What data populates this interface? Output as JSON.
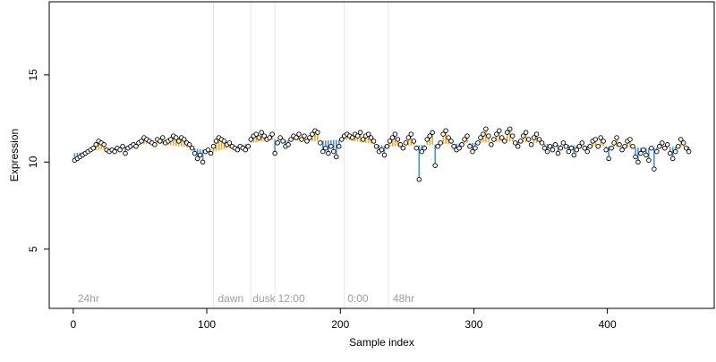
{
  "chart_data": {
    "type": "scatter",
    "xlabel": "Sample index",
    "ylabel": "Expression",
    "xlim": [
      -18,
      480
    ],
    "ylim": [
      1.6,
      19.2
    ],
    "x_ticks": [
      0,
      100,
      200,
      300,
      400
    ],
    "y_ticks": [
      5,
      10,
      15
    ],
    "grid": false,
    "legend": "none",
    "colors": {
      "points_stroke": "#000000",
      "points_fill": "#ffffff",
      "stem_above": "#f5a623",
      "stem_below": "#4a90e2",
      "vline": "#e6e6e6",
      "annotation_text": "#9e9e9e"
    },
    "vlines": [
      105,
      133,
      151,
      203,
      236
    ],
    "annotations": [
      {
        "label": "24hr",
        "x": 2
      },
      {
        "label": "dawn",
        "x": 107
      },
      {
        "label": "dusk",
        "x": 133
      },
      {
        "label": "12:00",
        "x": 152
      },
      {
        "label": "0:00",
        "x": 204
      },
      {
        "label": "48hr",
        "x": 238
      }
    ],
    "series": [
      {
        "baseline": [
          {
            "x": 0,
            "y": 10.5
          },
          {
            "x": 30,
            "y": 10.8
          },
          {
            "x": 60,
            "y": 11.1
          },
          {
            "x": 90,
            "y": 10.8
          },
          {
            "x": 105,
            "y": 10.6
          },
          {
            "x": 133,
            "y": 11.1
          },
          {
            "x": 151,
            "y": 11.3
          },
          {
            "x": 180,
            "y": 11.2
          },
          {
            "x": 203,
            "y": 11.3
          },
          {
            "x": 236,
            "y": 10.9
          },
          {
            "x": 270,
            "y": 11.0
          },
          {
            "x": 300,
            "y": 11.1
          },
          {
            "x": 330,
            "y": 11.2
          },
          {
            "x": 360,
            "y": 11.0
          },
          {
            "x": 400,
            "y": 10.9
          },
          {
            "x": 430,
            "y": 10.8
          },
          {
            "x": 460,
            "y": 10.9
          }
        ],
        "points": [
          [
            1,
            10.1
          ],
          [
            3,
            10.2
          ],
          [
            5,
            10.3
          ],
          [
            7,
            10.4
          ],
          [
            9,
            10.5
          ],
          [
            11,
            10.6
          ],
          [
            13,
            10.7
          ],
          [
            15,
            10.8
          ],
          [
            17,
            11.0
          ],
          [
            19,
            11.2
          ],
          [
            21,
            11.1
          ],
          [
            23,
            11.0
          ],
          [
            25,
            10.7
          ],
          [
            27,
            10.6
          ],
          [
            29,
            10.7
          ],
          [
            31,
            10.6
          ],
          [
            33,
            10.8
          ],
          [
            35,
            10.7
          ],
          [
            37,
            10.9
          ],
          [
            39,
            10.5
          ],
          [
            41,
            10.8
          ],
          [
            43,
            10.9
          ],
          [
            45,
            11.0
          ],
          [
            47,
            10.9
          ],
          [
            49,
            11.1
          ],
          [
            51,
            11.2
          ],
          [
            53,
            11.4
          ],
          [
            55,
            11.3
          ],
          [
            57,
            11.2
          ],
          [
            59,
            11.1
          ],
          [
            61,
            11.0
          ],
          [
            63,
            11.3
          ],
          [
            65,
            11.2
          ],
          [
            67,
            11.4
          ],
          [
            69,
            11.1
          ],
          [
            71,
            11.2
          ],
          [
            73,
            11.3
          ],
          [
            75,
            11.5
          ],
          [
            77,
            11.4
          ],
          [
            79,
            11.2
          ],
          [
            81,
            11.4
          ],
          [
            83,
            11.3
          ],
          [
            85,
            11.1
          ],
          [
            87,
            11.0
          ],
          [
            89,
            10.8
          ],
          [
            91,
            10.5
          ],
          [
            93,
            10.2
          ],
          [
            95,
            10.4
          ],
          [
            97,
            10.0
          ],
          [
            99,
            10.6
          ],
          [
            101,
            10.7
          ],
          [
            103,
            10.5
          ],
          [
            105,
            10.9
          ],
          [
            107,
            11.2
          ],
          [
            109,
            11.4
          ],
          [
            111,
            11.3
          ],
          [
            113,
            11.2
          ],
          [
            115,
            11.0
          ],
          [
            117,
            11.1
          ],
          [
            119,
            10.9
          ],
          [
            121,
            10.8
          ],
          [
            123,
            10.7
          ],
          [
            125,
            10.9
          ],
          [
            127,
            10.8
          ],
          [
            129,
            10.7
          ],
          [
            131,
            10.9
          ],
          [
            133,
            11.3
          ],
          [
            135,
            11.5
          ],
          [
            137,
            11.6
          ],
          [
            139,
            11.4
          ],
          [
            141,
            11.7
          ],
          [
            143,
            11.5
          ],
          [
            145,
            11.3
          ],
          [
            147,
            11.4
          ],
          [
            149,
            11.6
          ],
          [
            151,
            10.5
          ],
          [
            153,
            11.1
          ],
          [
            155,
            11.4
          ],
          [
            157,
            11.2
          ],
          [
            159,
            10.9
          ],
          [
            161,
            11.0
          ],
          [
            163,
            11.3
          ],
          [
            165,
            11.5
          ],
          [
            167,
            11.4
          ],
          [
            169,
            11.6
          ],
          [
            171,
            11.3
          ],
          [
            173,
            11.5
          ],
          [
            175,
            11.2
          ],
          [
            177,
            11.4
          ],
          [
            179,
            11.6
          ],
          [
            181,
            11.8
          ],
          [
            183,
            11.7
          ],
          [
            185,
            11.1
          ],
          [
            187,
            10.6
          ],
          [
            189,
            10.8
          ],
          [
            191,
            10.5
          ],
          [
            193,
            10.9
          ],
          [
            195,
            10.6
          ],
          [
            197,
            10.3
          ],
          [
            199,
            10.9
          ],
          [
            201,
            11.3
          ],
          [
            203,
            11.5
          ],
          [
            205,
            11.6
          ],
          [
            207,
            11.5
          ],
          [
            209,
            11.4
          ],
          [
            211,
            11.6
          ],
          [
            213,
            11.5
          ],
          [
            215,
            11.7
          ],
          [
            217,
            11.3
          ],
          [
            219,
            11.5
          ],
          [
            221,
            11.6
          ],
          [
            223,
            11.4
          ],
          [
            225,
            11.2
          ],
          [
            227,
            10.9
          ],
          [
            229,
            10.6
          ],
          [
            231,
            10.7
          ],
          [
            233,
            10.4
          ],
          [
            235,
            10.9
          ],
          [
            237,
            11.2
          ],
          [
            239,
            11.4
          ],
          [
            241,
            11.6
          ],
          [
            243,
            11.3
          ],
          [
            245,
            11.0
          ],
          [
            247,
            10.8
          ],
          [
            249,
            11.1
          ],
          [
            251,
            11.4
          ],
          [
            253,
            11.6
          ],
          [
            255,
            11.2
          ],
          [
            257,
            10.8
          ],
          [
            259,
            9.0
          ],
          [
            261,
            10.6
          ],
          [
            263,
            10.8
          ],
          [
            265,
            11.3
          ],
          [
            267,
            11.5
          ],
          [
            269,
            11.7
          ],
          [
            271,
            9.8
          ],
          [
            273,
            10.9
          ],
          [
            275,
            11.1
          ],
          [
            277,
            11.6
          ],
          [
            279,
            11.8
          ],
          [
            281,
            11.4
          ],
          [
            283,
            11.2
          ],
          [
            285,
            10.9
          ],
          [
            287,
            10.7
          ],
          [
            289,
            10.8
          ],
          [
            291,
            11.0
          ],
          [
            293,
            11.3
          ],
          [
            295,
            11.5
          ],
          [
            297,
            10.9
          ],
          [
            299,
            10.6
          ],
          [
            301,
            10.8
          ],
          [
            303,
            11.1
          ],
          [
            305,
            11.4
          ],
          [
            307,
            11.6
          ],
          [
            309,
            11.9
          ],
          [
            311,
            11.5
          ],
          [
            313,
            11.0
          ],
          [
            315,
            11.3
          ],
          [
            317,
            11.6
          ],
          [
            319,
            11.8
          ],
          [
            321,
            11.4
          ],
          [
            323,
            11.2
          ],
          [
            325,
            11.7
          ],
          [
            327,
            11.9
          ],
          [
            329,
            11.5
          ],
          [
            331,
            11.1
          ],
          [
            333,
            10.9
          ],
          [
            335,
            11.2
          ],
          [
            337,
            11.5
          ],
          [
            339,
            11.7
          ],
          [
            341,
            11.3
          ],
          [
            343,
            11.0
          ],
          [
            345,
            11.4
          ],
          [
            347,
            11.6
          ],
          [
            349,
            11.3
          ],
          [
            351,
            11.1
          ],
          [
            353,
            10.8
          ],
          [
            355,
            10.6
          ],
          [
            357,
            10.9
          ],
          [
            359,
            10.7
          ],
          [
            361,
            11.0
          ],
          [
            363,
            10.5
          ],
          [
            365,
            10.8
          ],
          [
            367,
            11.1
          ],
          [
            369,
            10.9
          ],
          [
            371,
            10.6
          ],
          [
            373,
            10.8
          ],
          [
            375,
            10.4
          ],
          [
            377,
            10.7
          ],
          [
            379,
            10.9
          ],
          [
            381,
            11.1
          ],
          [
            383,
            10.8
          ],
          [
            385,
            10.6
          ],
          [
            387,
            10.9
          ],
          [
            389,
            11.2
          ],
          [
            391,
            11.3
          ],
          [
            393,
            10.9
          ],
          [
            395,
            11.4
          ],
          [
            397,
            11.2
          ],
          [
            399,
            10.7
          ],
          [
            401,
            10.2
          ],
          [
            403,
            10.8
          ],
          [
            405,
            11.1
          ],
          [
            407,
            11.4
          ],
          [
            409,
            11.0
          ],
          [
            411,
            10.7
          ],
          [
            413,
            10.9
          ],
          [
            415,
            11.2
          ],
          [
            417,
            11.3
          ],
          [
            419,
            10.9
          ],
          [
            421,
            10.3
          ],
          [
            423,
            10.0
          ],
          [
            425,
            10.5
          ],
          [
            427,
            10.7
          ],
          [
            429,
            10.4
          ],
          [
            431,
            10.1
          ],
          [
            433,
            10.8
          ],
          [
            435,
            9.6
          ],
          [
            437,
            10.6
          ],
          [
            439,
            10.9
          ],
          [
            441,
            11.1
          ],
          [
            443,
            10.8
          ],
          [
            445,
            11.0
          ],
          [
            447,
            10.5
          ],
          [
            449,
            10.2
          ],
          [
            451,
            10.6
          ],
          [
            453,
            10.9
          ],
          [
            455,
            11.3
          ],
          [
            457,
            11.1
          ],
          [
            459,
            10.8
          ],
          [
            461,
            10.6
          ]
        ]
      }
    ]
  }
}
